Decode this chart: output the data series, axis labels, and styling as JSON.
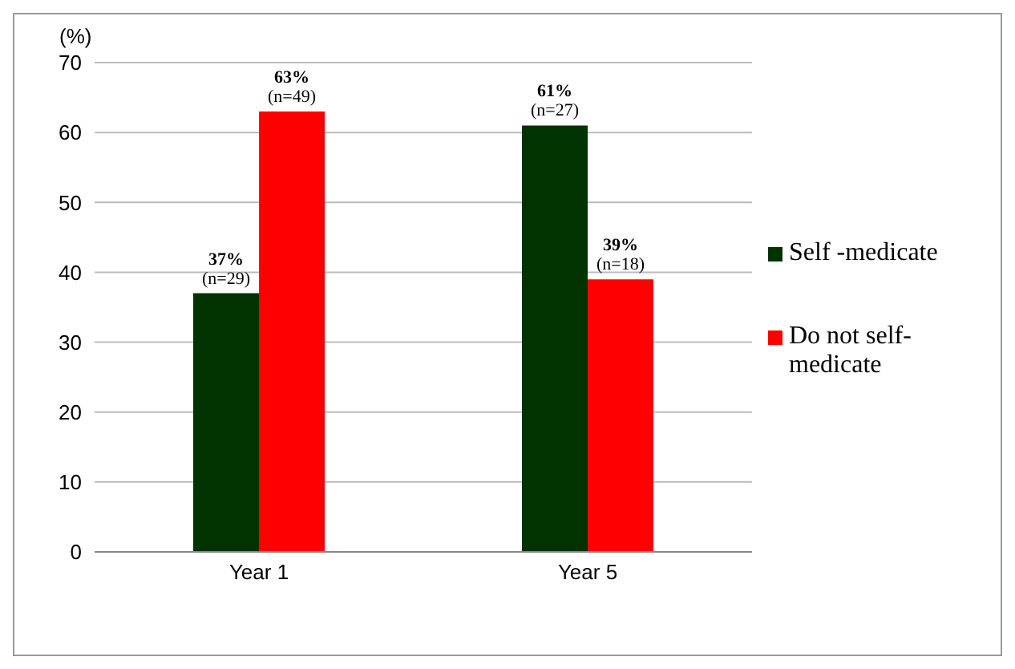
{
  "chart_data": {
    "type": "bar",
    "ylabel": "(%)",
    "categories": [
      "Year 1",
      "Year 5"
    ],
    "series": [
      {
        "name": "Self -medicate",
        "color": "#003300",
        "values": [
          37,
          61
        ],
        "value_labels": [
          "37%\n(n=29)",
          "61%\n(n=27)"
        ]
      },
      {
        "name": "Do not self-medicate",
        "color": "#ff0000",
        "values": [
          63,
          39
        ],
        "value_labels": [
          "63%\n(n=49)",
          "39%\n(n=18)"
        ]
      }
    ],
    "ylim": [
      0,
      70
    ],
    "yticks": [
      0,
      10,
      20,
      30,
      40,
      50,
      60,
      70
    ],
    "grid": "y",
    "legend": "right"
  }
}
